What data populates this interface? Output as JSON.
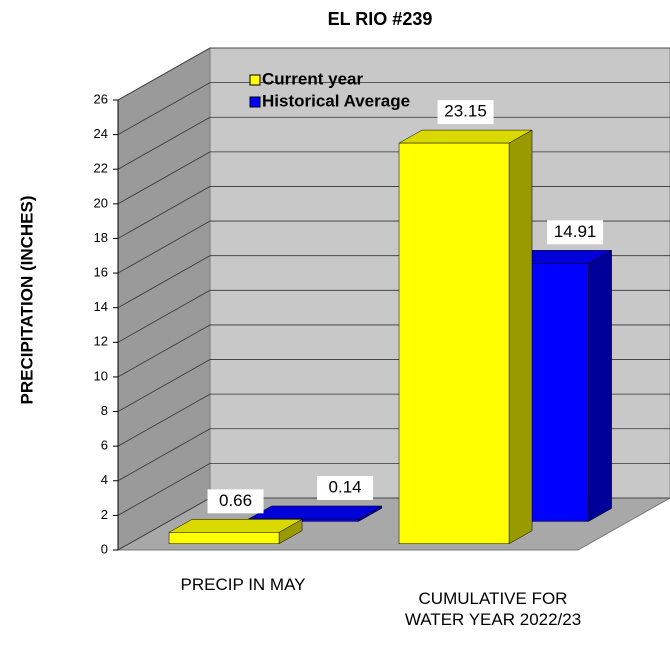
{
  "chart_data": {
    "type": "bar3d",
    "title": "EL RIO #239",
    "y_label": "PRECIPITATION  (INCHES)",
    "categories": [
      "PRECIP IN MAY",
      "CUMULATIVE FOR WATER YEAR 2022/23"
    ],
    "series": [
      {
        "name": "Current year",
        "color": "#ffff00",
        "values": [
          0.66,
          23.15
        ]
      },
      {
        "name": "Historical Average",
        "color": "#0000ff",
        "values": [
          0.14,
          14.91
        ]
      }
    ],
    "ylim": [
      0,
      26
    ],
    "yticks": [
      0,
      2,
      4,
      6,
      8,
      10,
      12,
      14,
      16,
      18,
      20,
      22,
      24,
      26
    ],
    "grid": true,
    "legend": "top-left"
  }
}
